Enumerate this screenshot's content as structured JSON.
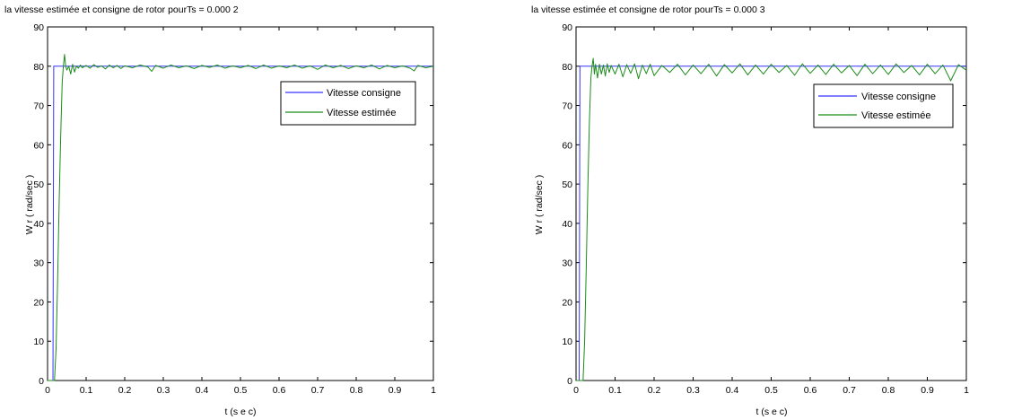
{
  "chart_data": [
    {
      "type": "line",
      "title": "la   vitesse   estimée   et  consigne  de   rotor pourTs = 0.000 2",
      "xlabel": "t (s e c)",
      "ylabel": "W r ( rad/sec )",
      "xlim": [
        0,
        1
      ],
      "ylim": [
        0,
        90
      ],
      "xticks": [
        "0",
        "0.1",
        "0.2",
        "0.3",
        "0.4",
        "0.5",
        "0.6",
        "0.7",
        "0.8",
        "0.9",
        "1"
      ],
      "yticks": [
        "0",
        "10",
        "20",
        "30",
        "40",
        "50",
        "60",
        "70",
        "80",
        "90"
      ],
      "grid": false,
      "legend_position": "top-right",
      "series": [
        {
          "name": "Vitesse consigne",
          "color": "#3333ff",
          "x": [
            0,
            0.014,
            0.016,
            0.018,
            1
          ],
          "y": [
            0,
            0,
            80,
            80,
            80
          ]
        },
        {
          "name": "Vitesse estimée",
          "color": "#1a8c1a",
          "x": [
            0,
            0.01,
            0.018,
            0.022,
            0.026,
            0.03,
            0.034,
            0.038,
            0.041,
            0.044,
            0.047,
            0.05,
            0.055,
            0.06,
            0.065,
            0.07,
            0.075,
            0.08,
            0.085,
            0.09,
            0.1,
            0.11,
            0.12,
            0.13,
            0.14,
            0.15,
            0.16,
            0.17,
            0.18,
            0.19,
            0.2,
            0.22,
            0.24,
            0.26,
            0.27,
            0.28,
            0.3,
            0.32,
            0.34,
            0.36,
            0.38,
            0.4,
            0.42,
            0.44,
            0.46,
            0.48,
            0.5,
            0.52,
            0.54,
            0.56,
            0.58,
            0.6,
            0.62,
            0.64,
            0.66,
            0.68,
            0.7,
            0.72,
            0.74,
            0.76,
            0.78,
            0.8,
            0.82,
            0.84,
            0.86,
            0.88,
            0.9,
            0.92,
            0.94,
            0.95,
            0.96,
            0.98,
            1.0
          ],
          "y": [
            0,
            0,
            0,
            8,
            25,
            45,
            62,
            76,
            80,
            83,
            80,
            79,
            80,
            78,
            80.5,
            78.5,
            80,
            79.5,
            80.3,
            79.6,
            80.2,
            79.5,
            80.4,
            79.7,
            80.1,
            79.3,
            80.3,
            79.6,
            80.2,
            79.4,
            80.1,
            79.6,
            80.3,
            79.8,
            78.7,
            80.2,
            79.5,
            80.3,
            79.6,
            80.1,
            79.4,
            80.2,
            79.7,
            80.3,
            79.5,
            80.1,
            79.6,
            80.2,
            79.4,
            80.3,
            79.5,
            80.1,
            79.6,
            80.3,
            79.5,
            80.1,
            79.2,
            80.3,
            79.6,
            80.2,
            79.4,
            80.1,
            79.6,
            80.3,
            79.3,
            80.2,
            79.6,
            80.1,
            79.5,
            78.8,
            80.2,
            79.6,
            80.0
          ]
        }
      ]
    },
    {
      "type": "line",
      "title": "la   vitesse   estimée   et  consigne  de   rotor pourTs = 0.000 3",
      "xlabel": "t (s e c)",
      "ylabel": "W r ( rad/sec )",
      "xlim": [
        0,
        1
      ],
      "ylim": [
        0,
        90
      ],
      "xticks": [
        "0",
        "0.1",
        "0.2",
        "0.3",
        "0.4",
        "0.5",
        "0.6",
        "0.7",
        "0.8",
        "0.9",
        "1"
      ],
      "yticks": [
        "0",
        "10",
        "20",
        "30",
        "40",
        "50",
        "60",
        "70",
        "80",
        "90"
      ],
      "grid": false,
      "legend_position": "top-right",
      "series": [
        {
          "name": "Vitesse consigne",
          "color": "#3333ff",
          "x": [
            0,
            0.008,
            0.01,
            0.012,
            1
          ],
          "y": [
            0,
            0,
            80,
            80,
            80
          ]
        },
        {
          "name": "Vitesse estimée",
          "color": "#1a8c1a",
          "x": [
            0,
            0.01,
            0.018,
            0.022,
            0.026,
            0.03,
            0.034,
            0.038,
            0.041,
            0.044,
            0.047,
            0.05,
            0.055,
            0.06,
            0.065,
            0.07,
            0.075,
            0.08,
            0.085,
            0.09,
            0.1,
            0.11,
            0.12,
            0.13,
            0.14,
            0.15,
            0.16,
            0.17,
            0.18,
            0.19,
            0.2,
            0.22,
            0.24,
            0.26,
            0.28,
            0.3,
            0.32,
            0.34,
            0.36,
            0.38,
            0.4,
            0.42,
            0.44,
            0.46,
            0.48,
            0.5,
            0.52,
            0.54,
            0.56,
            0.58,
            0.6,
            0.62,
            0.64,
            0.66,
            0.68,
            0.7,
            0.72,
            0.74,
            0.76,
            0.78,
            0.8,
            0.82,
            0.84,
            0.86,
            0.88,
            0.9,
            0.92,
            0.94,
            0.96,
            0.98,
            1.0
          ],
          "y": [
            0,
            0,
            0,
            10,
            28,
            48,
            65,
            77,
            80,
            82,
            78,
            80.5,
            77,
            80.5,
            78,
            80.3,
            77.5,
            80.6,
            78.4,
            80.2,
            78.0,
            80.5,
            77.3,
            80.4,
            78.2,
            80.6,
            76.8,
            80.3,
            78.1,
            80.5,
            77.6,
            80.2,
            78.4,
            80.5,
            77.8,
            80.3,
            78.1,
            80.5,
            77.5,
            80.4,
            78.3,
            80.6,
            77.8,
            80.3,
            78.0,
            80.5,
            78.4,
            80.2,
            77.7,
            80.6,
            78.2,
            80.3,
            77.9,
            80.5,
            78.3,
            80.2,
            77.6,
            80.5,
            78.1,
            80.3,
            77.9,
            80.6,
            78.4,
            80.2,
            77.8,
            80.5,
            78.1,
            80.3,
            76.3,
            80.4,
            79.0
          ]
        }
      ]
    }
  ]
}
